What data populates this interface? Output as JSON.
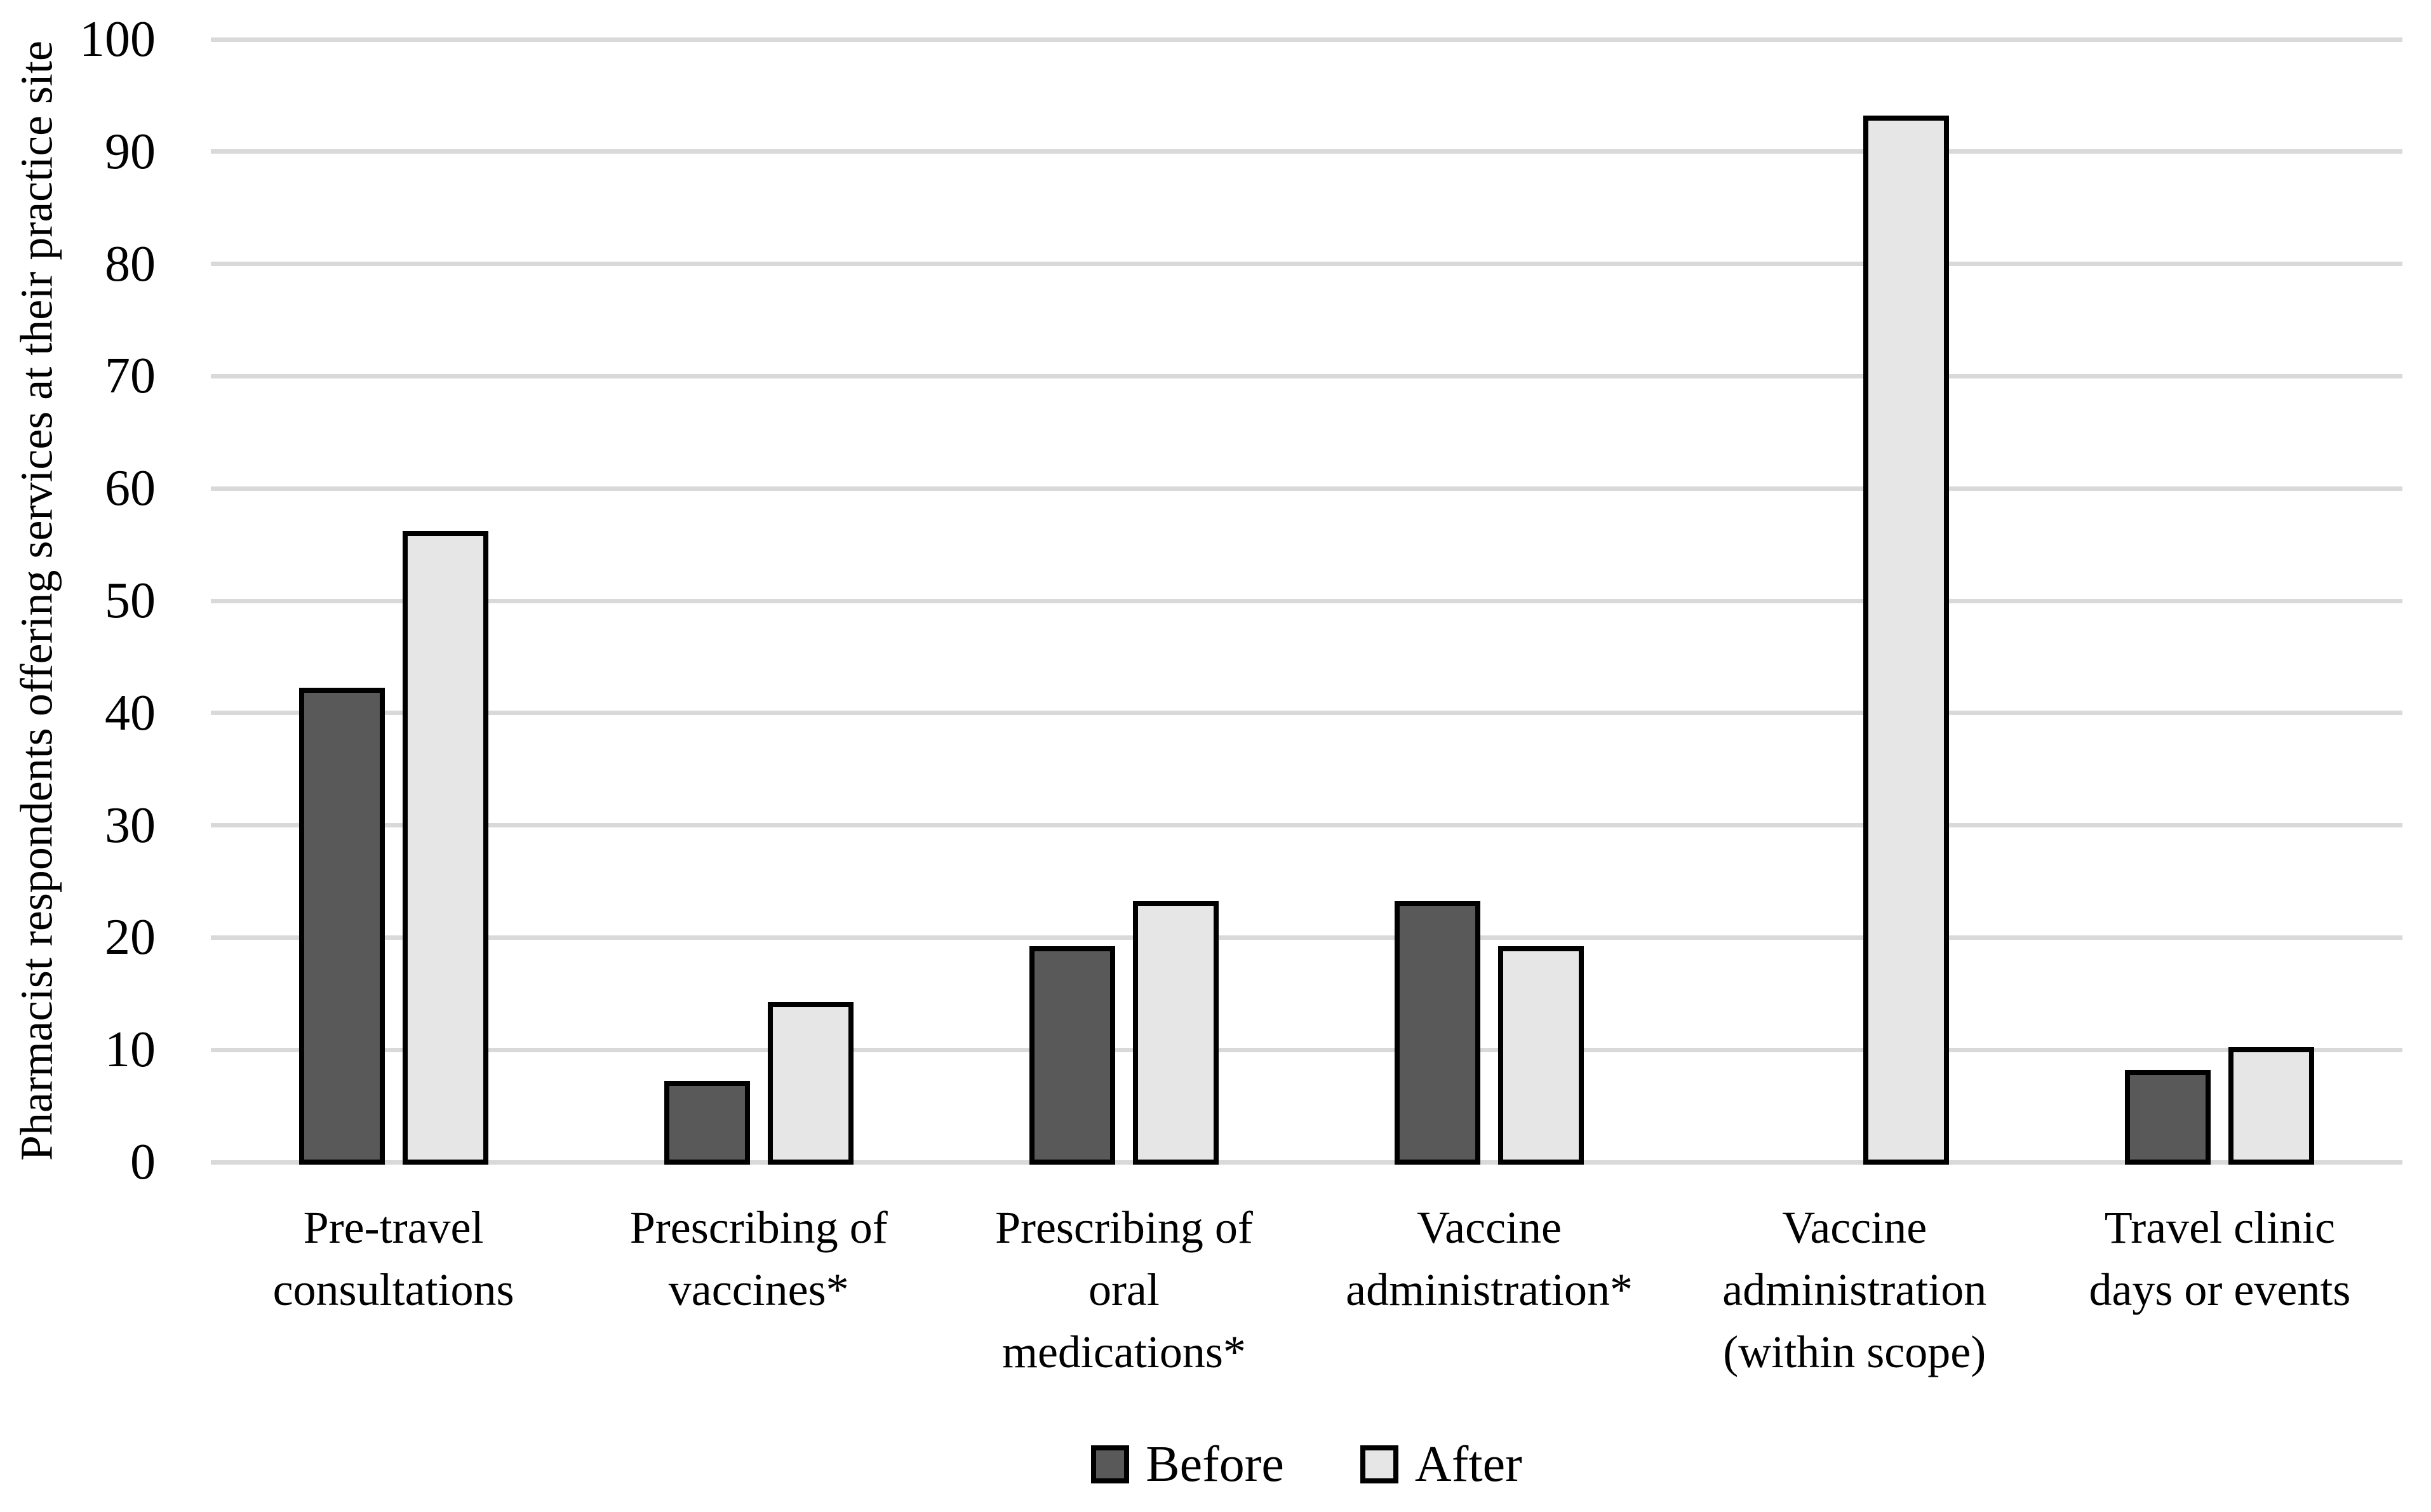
{
  "chart_data": {
    "type": "bar",
    "title": "",
    "categories": [
      "Pre-travel consultations",
      "Prescribing of vaccines*",
      "Prescribing of oral medications*",
      "Vaccine administration*",
      "Vaccine administration (within scope)",
      "Travel clinic days or events"
    ],
    "category_lines": [
      [
        "Pre-travel",
        "consultations"
      ],
      [
        "Prescribing of",
        "vaccines*"
      ],
      [
        "Prescribing of",
        "oral",
        "medications*"
      ],
      [
        "Vaccine",
        "administration*"
      ],
      [
        "Vaccine",
        "administration",
        "(within scope)"
      ],
      [
        "Travel clinic",
        "days or events"
      ]
    ],
    "series": [
      {
        "name": "Before",
        "color": "#595959",
        "border_color": "#000000",
        "values": [
          42,
          7,
          19,
          23,
          0,
          8
        ]
      },
      {
        "name": "After",
        "color": "#e6e6e6",
        "border_color": "#000000",
        "values": [
          56,
          14,
          23,
          19,
          93,
          10
        ]
      }
    ],
    "xlabel": "",
    "ylabel": "Pharmacist respondents offering services at their practice site",
    "ylim": [
      0,
      100
    ],
    "yticks": [
      0,
      10,
      20,
      30,
      40,
      50,
      60,
      70,
      80,
      90,
      100
    ],
    "grid": true,
    "gridline_color": "#d9d9d9",
    "background_color": "#ffffff",
    "legend_position": "bottom"
  }
}
